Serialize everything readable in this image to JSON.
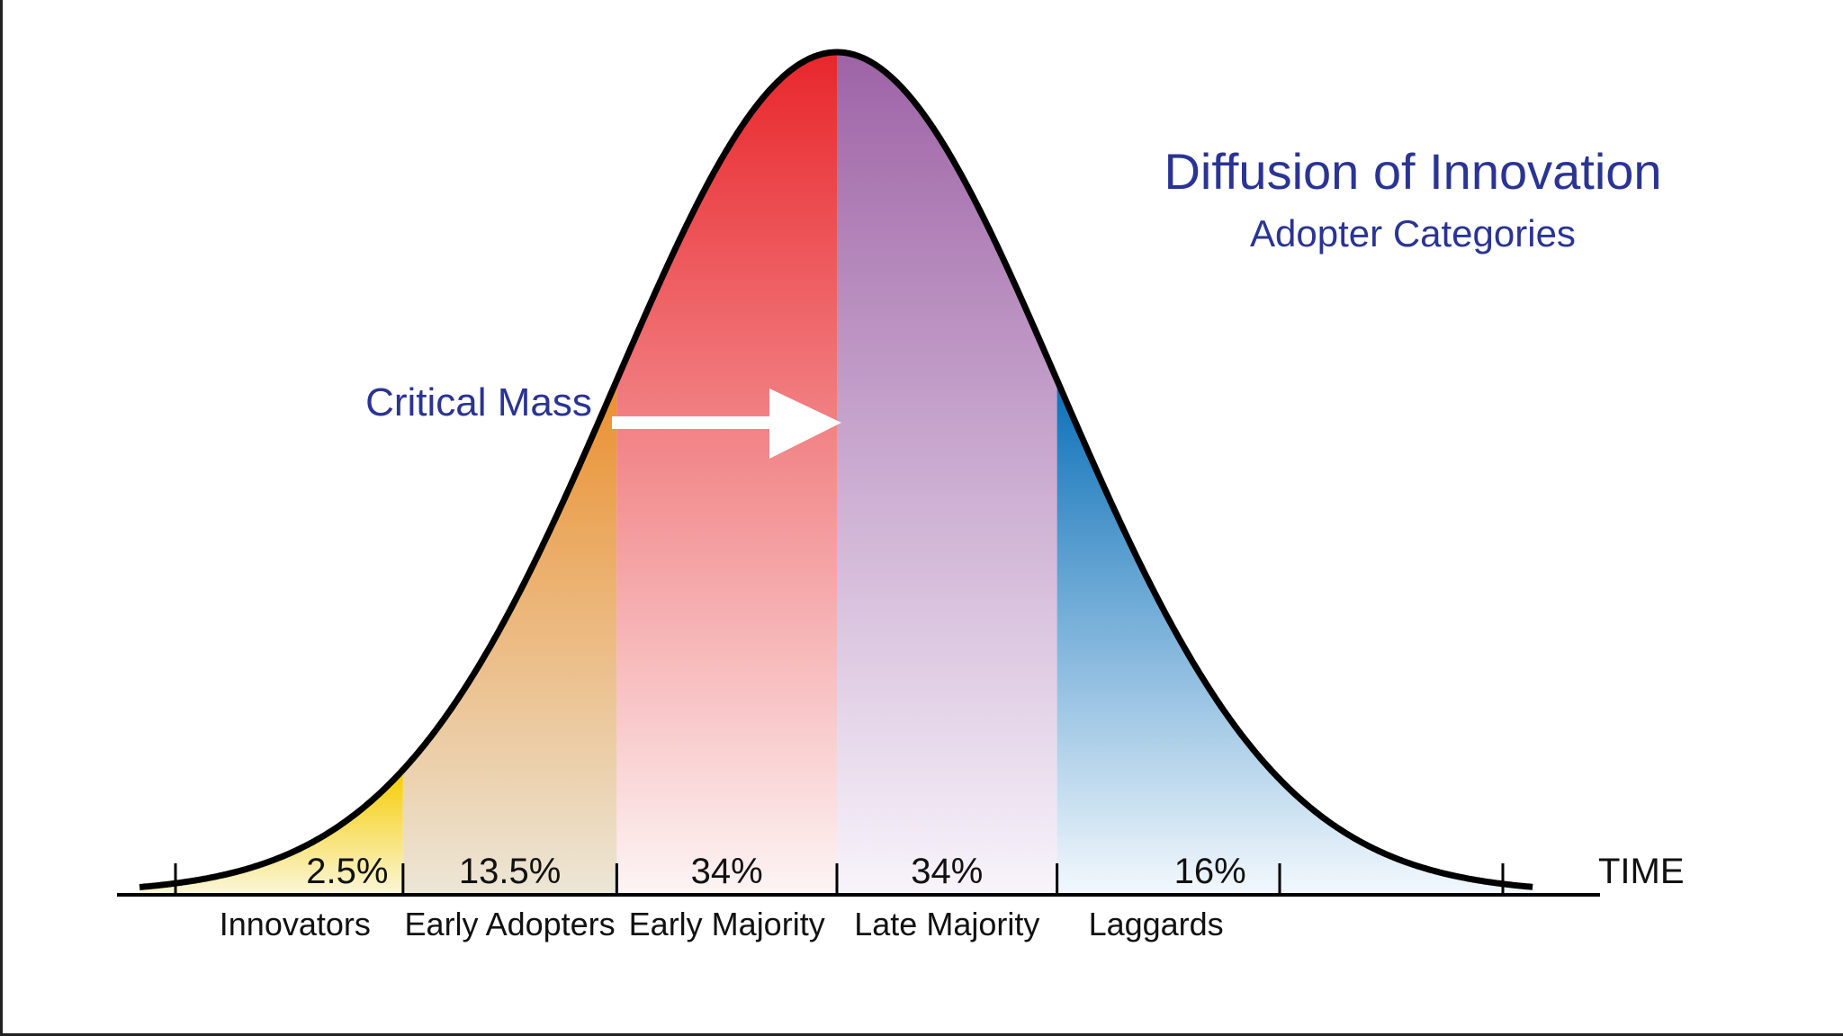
{
  "chart_data": {
    "type": "area",
    "title": "Diffusion of Innovation",
    "subtitle": "Adopter Categories",
    "xlabel": "TIME",
    "ylabel": "",
    "annotation": "Critical Mass",
    "segments": [
      {
        "name": "Innovators",
        "percent_label": "2.5%",
        "value": 2.5,
        "color_top": "#f6cc00",
        "color_bottom": "#faf6d6"
      },
      {
        "name": "Early Adopters",
        "percent_label": "13.5%",
        "value": 13.5,
        "color_top": "#eb8f2e",
        "color_bottom": "#ece6d6"
      },
      {
        "name": "Early Majority",
        "percent_label": "34%",
        "value": 34,
        "color_top": "#e8262b",
        "color_bottom": "#fdf4f4"
      },
      {
        "name": "Late Majority",
        "percent_label": "34%",
        "value": 34,
        "color_top": "#9e63a6",
        "color_bottom": "#f8f4fb"
      },
      {
        "name": "Laggards",
        "percent_label": "16%",
        "value": 16,
        "color_top": "#0b70b8",
        "color_bottom": "#f2f8fd"
      }
    ],
    "grid": false,
    "legend": "none"
  }
}
